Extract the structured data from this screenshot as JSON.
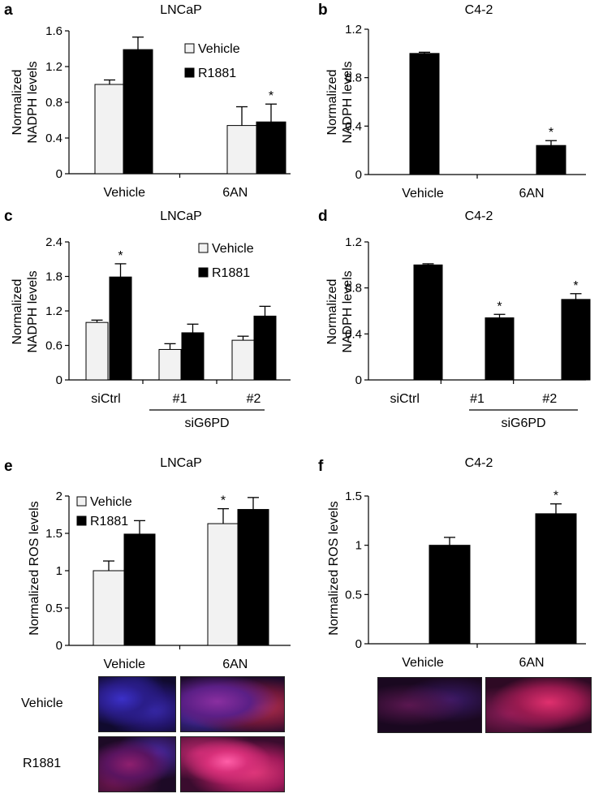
{
  "panels": [
    {
      "id": "a",
      "letter": "a"
    },
    {
      "id": "b",
      "letter": "b"
    },
    {
      "id": "c",
      "letter": "c"
    },
    {
      "id": "d",
      "letter": "d"
    },
    {
      "id": "e",
      "letter": "e"
    },
    {
      "id": "f",
      "letter": "f"
    }
  ],
  "colors": {
    "vehicle": "#f2f2f2",
    "r1881": "#000000"
  },
  "chart_data": [
    {
      "id": "a",
      "type": "bar",
      "title": "LNCaP",
      "ylabel": "Normalized\nNADPH levels",
      "xlabel": "",
      "categories": [
        "Vehicle",
        "6AN"
      ],
      "yticks": [
        "0",
        "0.4",
        "0.8",
        "1.2",
        "1.6"
      ],
      "ylim": [
        0,
        1.6
      ],
      "legend": "inside-center",
      "series": [
        {
          "name": "Vehicle",
          "values": [
            1.0,
            0.54
          ],
          "errors": [
            0.05,
            0.21
          ]
        },
        {
          "name": "R1881",
          "values": [
            1.39,
            0.58
          ],
          "errors": [
            0.14,
            0.2
          ]
        }
      ],
      "significance": [
        {
          "series": 1,
          "category": 1,
          "mark": "*"
        }
      ]
    },
    {
      "id": "b",
      "type": "bar",
      "title": "C4-2",
      "ylabel": "Normalized\nNADPH levels",
      "xlabel": "",
      "categories": [
        "Vehicle",
        "6AN"
      ],
      "yticks": [
        "0",
        "0.4",
        "0.8",
        "1.2"
      ],
      "ylim": [
        0,
        1.2
      ],
      "series": [
        {
          "values": [
            1.0,
            0.24
          ],
          "errors": [
            0.01,
            0.04
          ]
        }
      ],
      "significance": [
        {
          "series": 0,
          "category": 1,
          "mark": "*"
        }
      ]
    },
    {
      "id": "c",
      "type": "bar",
      "title": "LNCaP",
      "ylabel": "Normalized\nNADPH levels",
      "xlabel": "",
      "categories": [
        "siCtrl",
        "#1",
        "#2"
      ],
      "group_label": "siG6PD",
      "yticks": [
        "0",
        "0.6",
        "1.2",
        "1.8",
        "2.4"
      ],
      "ylim": [
        0,
        2.4
      ],
      "legend": "inside-right",
      "series": [
        {
          "name": "Vehicle",
          "values": [
            1.0,
            0.53,
            0.69
          ],
          "errors": [
            0.04,
            0.1,
            0.07
          ]
        },
        {
          "name": "R1881",
          "values": [
            1.79,
            0.82,
            1.11
          ],
          "errors": [
            0.23,
            0.15,
            0.17
          ]
        }
      ],
      "significance": [
        {
          "series": 1,
          "category": 0,
          "mark": "*"
        }
      ]
    },
    {
      "id": "d",
      "type": "bar",
      "title": "C4-2",
      "ylabel": "Normalized\nNADPH levels",
      "xlabel": "",
      "categories": [
        "siCtrl",
        "#1",
        "#2"
      ],
      "group_label": "siG6PD",
      "yticks": [
        "0",
        "0.4",
        "0.8",
        "1.2"
      ],
      "ylim": [
        0,
        1.2
      ],
      "series": [
        {
          "values": [
            1.0,
            0.54,
            0.7
          ],
          "errors": [
            0.01,
            0.03,
            0.05
          ]
        }
      ],
      "significance": [
        {
          "series": 0,
          "category": 1,
          "mark": "*"
        },
        {
          "series": 0,
          "category": 2,
          "mark": "*"
        }
      ]
    },
    {
      "id": "e",
      "type": "bar",
      "title": "LNCaP",
      "ylabel": "Normalized ROS levels",
      "xlabel": "",
      "categories": [
        "Vehicle",
        "6AN"
      ],
      "yticks": [
        "0",
        "0.5",
        "1",
        "1.5",
        "2"
      ],
      "ylim": [
        0,
        2
      ],
      "legend": "top-left",
      "series": [
        {
          "name": "Vehicle",
          "values": [
            1.0,
            1.63
          ],
          "errors": [
            0.13,
            0.2
          ]
        },
        {
          "name": "R1881",
          "values": [
            1.49,
            1.82
          ],
          "errors": [
            0.18,
            0.16
          ]
        }
      ],
      "significance": [
        {
          "series": 0,
          "category": 1,
          "mark": "*"
        }
      ]
    },
    {
      "id": "f",
      "type": "bar",
      "title": "C4-2",
      "ylabel": "Normalized ROS levels",
      "xlabel": "",
      "categories": [
        "Vehicle",
        "6AN"
      ],
      "yticks": [
        "0",
        "0.5",
        "1",
        "1.5"
      ],
      "ylim": [
        0,
        1.5
      ],
      "series": [
        {
          "values": [
            1.0,
            1.32
          ],
          "errors": [
            0.08,
            0.1
          ]
        }
      ],
      "significance": [
        {
          "series": 0,
          "category": 1,
          "mark": "*"
        }
      ]
    }
  ],
  "micrographs": {
    "e_rows": [
      "Vehicle",
      "R1881"
    ]
  }
}
